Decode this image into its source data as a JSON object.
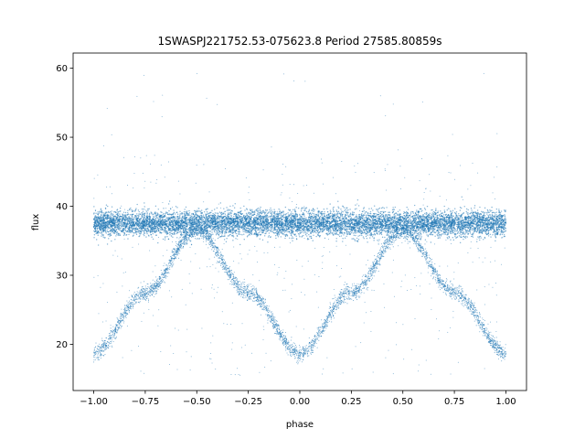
{
  "chart_data": {
    "type": "scatter",
    "title": "1SWASPJ221752.53-075623.8 Period 27585.80859s",
    "xlabel": "phase",
    "ylabel": "flux",
    "xlim": [
      -1.1,
      1.1
    ],
    "ylim": [
      13.3,
      62.2
    ],
    "x_ticks": [
      -1.0,
      -0.75,
      -0.5,
      -0.25,
      0.0,
      0.25,
      0.5,
      0.75,
      1.0
    ],
    "x_tick_labels": [
      "−1.00",
      "−0.75",
      "−0.50",
      "−0.25",
      "0.00",
      "0.25",
      "0.50",
      "0.75",
      "1.00"
    ],
    "y_ticks": [
      20,
      30,
      40,
      50,
      60
    ],
    "y_tick_labels": [
      "20",
      "30",
      "40",
      "50",
      "60"
    ],
    "grid": false,
    "legend": "none",
    "series": [
      {
        "color": "#1f77b4",
        "description_points": "phase-folded light curve; two overlapping components",
        "baseline_band": {
          "x_range": [
            -1.0,
            1.0
          ],
          "y_center": 37.5,
          "y_spread": [
            35.5,
            40.0
          ]
        },
        "sinusoid_component": {
          "points": [
            {
              "x": -1.0,
              "y": 18.8
            },
            {
              "x": -0.75,
              "y": 27.5
            },
            {
              "x": -0.5,
              "y": 36.5
            },
            {
              "x": -0.25,
              "y": 27.5
            },
            {
              "x": 0.0,
              "y": 18.7
            },
            {
              "x": 0.25,
              "y": 27.5
            },
            {
              "x": 0.5,
              "y": 36.5
            },
            {
              "x": 0.75,
              "y": 27.5
            },
            {
              "x": 1.0,
              "y": 18.8
            }
          ]
        },
        "outlier_range": [
          15.5,
          59.5
        ]
      }
    ]
  }
}
